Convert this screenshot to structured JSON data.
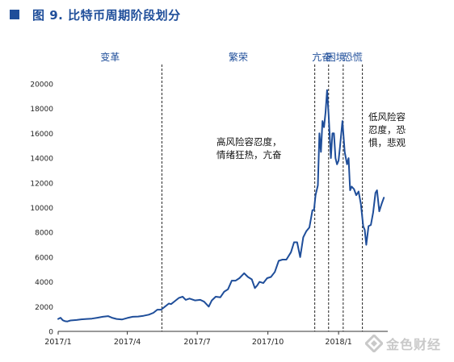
{
  "figure_title": "图 9. 比特币周期阶段划分",
  "watermark": "金色财经",
  "chart_data": {
    "type": "line",
    "title": "",
    "xlabel": "",
    "ylabel": "",
    "ylim": [
      0,
      20000
    ],
    "yticks": [
      0,
      2000,
      4000,
      6000,
      8000,
      10000,
      12000,
      14000,
      16000,
      18000,
      20000
    ],
    "xticks": [
      "2017/1",
      "2017/4",
      "2017/7",
      "2017/10",
      "2018/1"
    ],
    "grid": false,
    "series": [
      {
        "color": "#1f4e9a",
        "x": [
          "2017-01-01",
          "2017-01-04",
          "2017-01-07",
          "2017-01-10",
          "2017-01-13",
          "2017-01-17",
          "2017-01-20",
          "2017-01-25",
          "2017-01-31",
          "2017-02-07",
          "2017-02-14",
          "2017-02-21",
          "2017-02-28",
          "2017-03-07",
          "2017-03-12",
          "2017-03-18",
          "2017-03-25",
          "2017-04-01",
          "2017-04-08",
          "2017-04-15",
          "2017-04-22",
          "2017-04-29",
          "2017-05-05",
          "2017-05-10",
          "2017-05-15",
          "2017-05-20",
          "2017-05-25",
          "2017-05-28",
          "2017-06-02",
          "2017-06-07",
          "2017-06-12",
          "2017-06-16",
          "2017-06-21",
          "2017-06-28",
          "2017-07-05",
          "2017-07-10",
          "2017-07-16",
          "2017-07-20",
          "2017-07-25",
          "2017-07-31",
          "2017-08-05",
          "2017-08-10",
          "2017-08-15",
          "2017-08-20",
          "2017-08-25",
          "2017-08-31",
          "2017-09-05",
          "2017-09-10",
          "2017-09-14",
          "2017-09-17",
          "2017-09-20",
          "2017-09-25",
          "2017-09-30",
          "2017-10-05",
          "2017-10-10",
          "2017-10-15",
          "2017-10-20",
          "2017-10-25",
          "2017-10-31",
          "2017-11-04",
          "2017-11-08",
          "2017-11-12",
          "2017-11-16",
          "2017-11-20",
          "2017-11-24",
          "2017-11-28",
          "2017-11-30",
          "2017-12-02",
          "2017-12-05",
          "2017-12-07",
          "2017-12-09",
          "2017-12-11",
          "2017-12-13",
          "2017-12-15",
          "2017-12-17",
          "2017-12-19",
          "2017-12-22",
          "2017-12-24",
          "2017-12-26",
          "2017-12-28",
          "2017-12-30",
          "2018-01-01",
          "2018-01-03",
          "2018-01-06",
          "2018-01-09",
          "2018-01-12",
          "2018-01-14",
          "2018-01-16",
          "2018-01-18",
          "2018-01-21",
          "2018-01-24",
          "2018-01-27",
          "2018-01-30",
          "2018-02-02",
          "2018-02-04",
          "2018-02-06",
          "2018-02-09",
          "2018-02-12",
          "2018-02-15",
          "2018-02-18",
          "2018-02-20",
          "2018-02-23",
          "2018-02-26",
          "2018-03-01"
        ],
        "y": [
          1000,
          1100,
          900,
          820,
          800,
          880,
          900,
          920,
          970,
          1000,
          1030,
          1100,
          1180,
          1230,
          1100,
          1000,
          960,
          1080,
          1180,
          1200,
          1260,
          1350,
          1500,
          1750,
          1750,
          2000,
          2250,
          2200,
          2450,
          2700,
          2800,
          2550,
          2650,
          2500,
          2550,
          2400,
          2000,
          2500,
          2800,
          2750,
          3200,
          3400,
          4100,
          4100,
          4300,
          4700,
          4400,
          4200,
          3500,
          3700,
          4000,
          3900,
          4300,
          4400,
          4800,
          5700,
          5800,
          5800,
          6400,
          7200,
          7200,
          6000,
          7600,
          8100,
          8400,
          9800,
          9800,
          11000,
          11800,
          16000,
          14500,
          17000,
          16500,
          17700,
          19500,
          17500,
          14000,
          16000,
          16000,
          14000,
          13500,
          13800,
          15000,
          17000,
          14500,
          13500,
          14000,
          11400,
          11700,
          11500,
          11000,
          11300,
          10300,
          8500,
          8200,
          7000,
          8500,
          8600,
          9600,
          11200,
          11400,
          9700,
          10300,
          10800
        ]
      }
    ],
    "phase_dividers": [
      "2017-05-16",
      "2017-12-01",
      "2017-12-19",
      "2018-01-07",
      "2018-02-01"
    ],
    "phases": [
      {
        "label": "变革",
        "start": "2017-01-01",
        "end": "2017-05-16"
      },
      {
        "label": "繁荣",
        "start": "2017-05-16",
        "end": "2017-12-01"
      },
      {
        "label": "亢奋",
        "start": "2017-12-01",
        "end": "2017-12-19"
      },
      {
        "label": "困境",
        "start": "2017-12-19",
        "end": "2018-01-07"
      },
      {
        "label": "恐慌",
        "start": "2018-01-07",
        "end": "2018-02-01"
      }
    ],
    "annotations": [
      {
        "lines": [
          "高风险容忍度，",
          "情绪狂热，亢奋"
        ]
      },
      {
        "lines": [
          "低风险容",
          "忍度，恐",
          "惧，悲观"
        ]
      }
    ]
  }
}
